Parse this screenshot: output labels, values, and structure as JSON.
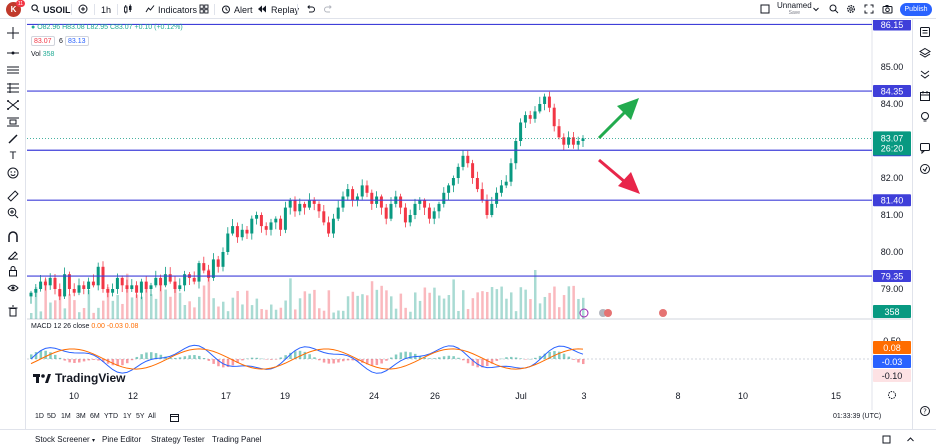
{
  "topbar": {
    "avatar_letter": "K",
    "avatar_badge": "11",
    "symbol": "USOIL",
    "interval": "1h",
    "indicators_label": "Indicators",
    "alert_label": "Alert",
    "replay_label": "Replay",
    "layout_name": "Unnamed",
    "layout_status": "Save",
    "publish_label": "Publish"
  },
  "legend": {
    "ohlc": "O82.96 H83.08 L82.95 C83.07 +0.10 (+0.12%)",
    "sell_price": "83.07",
    "spread": "6",
    "buy_price": "83.13",
    "vol_label": "Vol",
    "vol_value": "358",
    "macd_label": "MACD 12 26 close",
    "macd_values": "0.00 -0.03 0.08"
  },
  "price_scale": {
    "ticks": [
      "85.00",
      "84.00",
      "83.00",
      "82.00",
      "81.00",
      "80.00",
      "79.00"
    ],
    "level_labels": [
      "86.15",
      "84.35",
      "82.75",
      "81.40",
      "79.35"
    ],
    "current_price": "83.07",
    "countdown": "26:20",
    "volume_label": "358"
  },
  "macd_scale": {
    "ticks": [
      "0.50",
      "0.00"
    ],
    "signal_label": "0.08",
    "macd_label": "-0.03",
    "lower_label": "-0.10"
  },
  "time_axis": {
    "ticks": [
      "10",
      "12",
      "17",
      "19",
      "24",
      "26",
      "Jul",
      "3",
      "8",
      "10",
      "15"
    ]
  },
  "bottom_toolbar": {
    "ranges": [
      "1D",
      "5D",
      "1M",
      "3M",
      "6M",
      "YTD",
      "1Y",
      "5Y",
      "All"
    ],
    "clock": "01:33:39 (UTC)"
  },
  "footer": {
    "tabs": [
      "Stock Screener",
      "Pine Editor",
      "Strategy Tester",
      "Trading Panel"
    ]
  },
  "branding": {
    "logo_text": "TradingView"
  },
  "colors": {
    "level_line": "#3f3fd9",
    "up_candle": "#089981",
    "down_candle": "#f23645",
    "macd_line": "#2962ff",
    "signal_line": "#ff6d00",
    "arrow_up": "#22ab4e",
    "arrow_down": "#e8264a",
    "price_label_bg": "#089981"
  },
  "chart_data": {
    "type": "candlestick",
    "symbol": "USOIL",
    "interval": "1h",
    "price_range": [
      78.6,
      86.4
    ],
    "horizontal_levels": [
      86.15,
      84.35,
      82.75,
      81.4,
      79.35
    ],
    "current_price": 83.07,
    "closes": [
      78.9,
      79.0,
      79.2,
      79.1,
      79.3,
      79.0,
      78.8,
      79.4,
      79.0,
      78.9,
      79.1,
      79.0,
      79.2,
      79.1,
      79.6,
      79.0,
      78.9,
      79.0,
      79.3,
      79.1,
      79.0,
      79.1,
      78.9,
      79.2,
      79.0,
      79.1,
      79.3,
      79.1,
      79.4,
      79.2,
      79.0,
      79.1,
      79.4,
      79.3,
      79.2,
      79.7,
      79.5,
      79.3,
      79.8,
      79.6,
      80.0,
      80.5,
      80.7,
      80.4,
      80.6,
      80.5,
      80.9,
      81.0,
      80.7,
      80.6,
      80.8,
      80.9,
      80.6,
      81.2,
      81.4,
      81.1,
      81.3,
      81.2,
      81.4,
      81.3,
      81.1,
      80.8,
      80.5,
      80.9,
      81.2,
      81.5,
      81.7,
      81.4,
      81.5,
      81.8,
      81.6,
      81.3,
      81.5,
      81.2,
      80.9,
      81.3,
      81.5,
      81.2,
      80.8,
      81.0,
      81.3,
      81.4,
      81.2,
      80.9,
      81.1,
      81.3,
      81.6,
      81.8,
      82.0,
      82.3,
      82.6,
      82.4,
      82.0,
      81.7,
      81.4,
      81.0,
      81.3,
      81.6,
      81.8,
      81.9,
      82.4,
      83.0,
      83.5,
      83.7,
      83.6,
      83.8,
      84.0,
      84.2,
      83.9,
      83.4,
      83.1,
      82.9,
      83.1,
      82.9,
      83.0,
      83.07
    ],
    "macd": {
      "ticks": [
        0.5,
        0.0
      ],
      "macd_value": -0.03,
      "signal_value": 0.08
    },
    "volume": 358
  }
}
